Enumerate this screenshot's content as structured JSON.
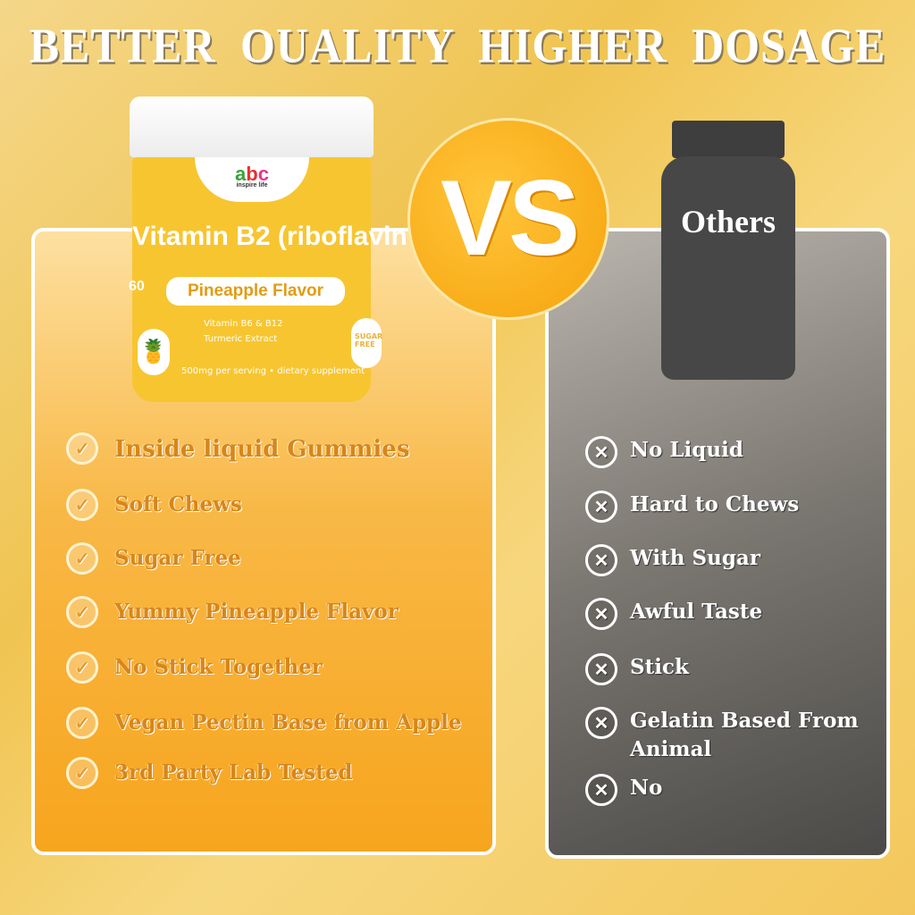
{
  "title": "BETTER  OUALITY  HIGHER DOSAGE",
  "vs": "VS",
  "product": {
    "brand": "abc",
    "tagline": "inspire life",
    "name": "Vitamin B2 (riboflavin",
    "count": "60",
    "flavor": "Pineapple Flavor",
    "line1": "Vitamin B6 & B12",
    "line2": "Turmeric Extract",
    "serving": "500mg per serving • dietary supplement",
    "badge": "SUGAR FREE"
  },
  "others_label": "Others",
  "pros": [
    "Inside liquid Gummies",
    "Soft Chews",
    "Sugar Free",
    "Yummy Pineapple Flavor",
    "No Stick Together",
    "Vegan Pectin Base from Apple",
    "3rd Party Lab Tested"
  ],
  "cons": [
    "No Liquid",
    "Hard to Chews",
    "With Sugar",
    "Awful Taste",
    "Stick",
    "Gelatin Based From Animal",
    "No"
  ],
  "icons": {
    "pro": "check-circle-icon",
    "con": "x-circle-icon"
  },
  "colors": {
    "accent": "#f7a51e",
    "pro_text": "#d8861a",
    "others": "#474747"
  }
}
